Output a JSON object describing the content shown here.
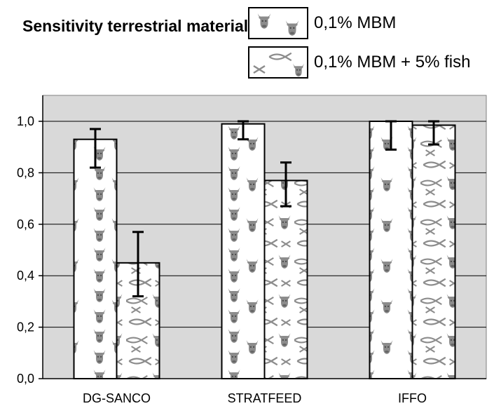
{
  "chart_data": {
    "type": "bar",
    "title": "Sensitivity terrestrial material",
    "categories": [
      "DG-SANCO",
      "STRATFEED",
      "IFFO"
    ],
    "series": [
      {
        "name": "0,1% MBM",
        "pattern": "cow",
        "values": [
          0.93,
          0.99,
          1.0
        ],
        "error_low": [
          0.82,
          0.93,
          0.89
        ],
        "error_high": [
          0.97,
          1.0,
          1.0
        ]
      },
      {
        "name": "0,1% MBM + 5% fish",
        "pattern": "cow-fish",
        "values": [
          0.45,
          0.77,
          0.985
        ],
        "error_low": [
          0.32,
          0.67,
          0.91
        ],
        "error_high": [
          0.57,
          0.84,
          1.0
        ]
      }
    ],
    "ylim": [
      0,
      1.0
    ],
    "yticks": [
      "0,0",
      "0,2",
      "0,4",
      "0,6",
      "0,8",
      "1,0"
    ],
    "grid": true,
    "legend_position": "top-right",
    "colors": {
      "plot_background": "#d9d9d9",
      "bar_fill": "#ffffff",
      "icon": "#8c8c8c",
      "bar_edge": "#000000"
    }
  }
}
